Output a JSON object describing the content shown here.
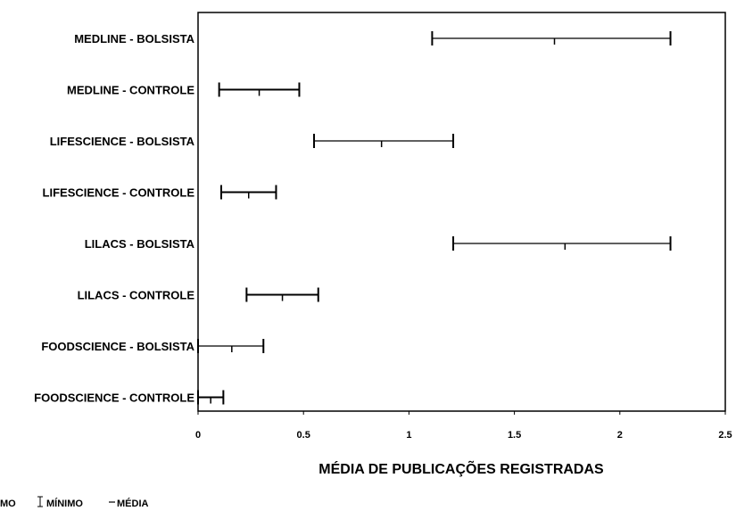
{
  "chart_data": {
    "type": "range",
    "title": "",
    "xlabel": "MÉDIA DE PUBLICAÇÕES REGISTRADAS",
    "ylabel": "",
    "xlim": [
      0,
      2.5
    ],
    "xticks": [
      {
        "value": 0,
        "label": "0"
      },
      {
        "value": 0.5,
        "label": "0.5"
      },
      {
        "value": 1,
        "label": "1"
      },
      {
        "value": 1.5,
        "label": "1.5"
      },
      {
        "value": 2,
        "label": "2"
      },
      {
        "value": 2.5,
        "label": "2.5"
      }
    ],
    "grid": false,
    "legend_position": "bottom-left",
    "legend": [
      "MO",
      "MÍNIMO",
      "MÉDIA"
    ],
    "categories": [
      "MEDLINE - BOLSISTA",
      "MEDLINE - CONTROLE",
      "LIFESCIENCE - BOLSISTA",
      "LIFESCIENCE - CONTROLE",
      "LILACS - BOLSISTA",
      "LILACS - CONTROLE",
      "FOODSCIENCE - BOLSISTA",
      "FOODSCIENCE - CONTROLE"
    ],
    "series": [
      {
        "name": "MÍNIMO",
        "values": [
          1.11,
          0.1,
          0.55,
          0.11,
          1.21,
          0.23,
          0.0,
          0.0
        ]
      },
      {
        "name": "MÉDIA",
        "values": [
          1.69,
          0.29,
          0.87,
          0.24,
          1.74,
          0.4,
          0.16,
          0.06
        ]
      },
      {
        "name": "MÁXIMO",
        "values": [
          2.24,
          0.48,
          1.21,
          0.37,
          2.24,
          0.57,
          0.31,
          0.12
        ]
      }
    ],
    "colors": {
      "line": "#000000",
      "background": "#ffffff"
    }
  }
}
